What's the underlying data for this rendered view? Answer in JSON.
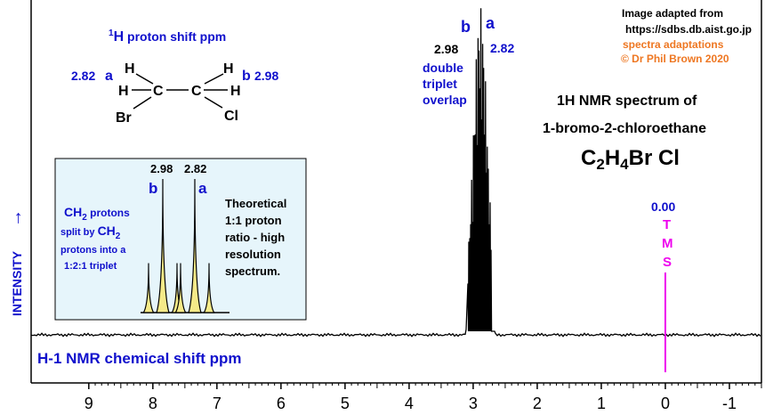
{
  "chart_data": {
    "type": "line",
    "title": "1H NMR spectrum of",
    "subtitle": "1-bromo-2-chloroethane",
    "xlabel": "H-1 NMR chemical shift  ppm",
    "ylabel": "INTENSITY",
    "ylabel_arrow": "→",
    "xlim": [
      9.9,
      -1.5
    ],
    "ticks": [
      "9",
      "8",
      "7",
      "6",
      "5",
      "4",
      "3",
      "2",
      "1",
      "0",
      "-1"
    ],
    "tick_values": [
      9,
      8,
      7,
      6,
      5,
      4,
      3,
      2,
      1,
      0,
      -1
    ],
    "peaks": [
      {
        "label": "b",
        "shift": "2.98",
        "value": 2.98
      },
      {
        "label": "a",
        "shift": "2.82",
        "value": 2.82
      }
    ],
    "peak_note": [
      "double",
      "triplet",
      "overlap"
    ],
    "tms": {
      "shift": "0.00",
      "letters": [
        "T",
        "M",
        "S"
      ],
      "value": 0.0
    },
    "credits": [
      "Image adapted from",
      "https://sdbs.db.aist.go.jp",
      "spectra adaptations",
      "© Dr Phil Brown 2020"
    ],
    "formula": {
      "c": "C",
      "c_n": "2",
      "h": "H",
      "h_n": "4",
      "rest": "Br Cl"
    },
    "structure": {
      "caption_sup": "1",
      "caption_h": "H",
      "caption_rest": " proton shift  ppm",
      "left_shift": "2.82",
      "left_label": "a",
      "right_label": "b",
      "right_shift": "2.98",
      "atoms": {
        "h": "H",
        "c": "C",
        "br": "Br",
        "cl": "Cl"
      }
    },
    "inset": {
      "peak_b_shift": "2.98",
      "peak_a_shift": "2.82",
      "peak_b_label": "b",
      "peak_a_label": "a",
      "note": [
        "Theoretical",
        "1:1 proton",
        "ratio - high",
        "resolution",
        "spectrum."
      ],
      "explain": {
        "l1_ch": "CH",
        "l1_n": "2",
        "l1_rest": " protons",
        "l2_pre": "split by ",
        "l2_ch": "CH",
        "l2_n": "2",
        "l3": "protons into a",
        "l4": "1:2:1 triplet"
      }
    },
    "colors": {
      "blue": "#1010cc",
      "orange": "#ee7722",
      "magenta": "#ee00ee",
      "inset_bg": "#e6f5fb",
      "peak_fill": "#f5ea88"
    }
  }
}
